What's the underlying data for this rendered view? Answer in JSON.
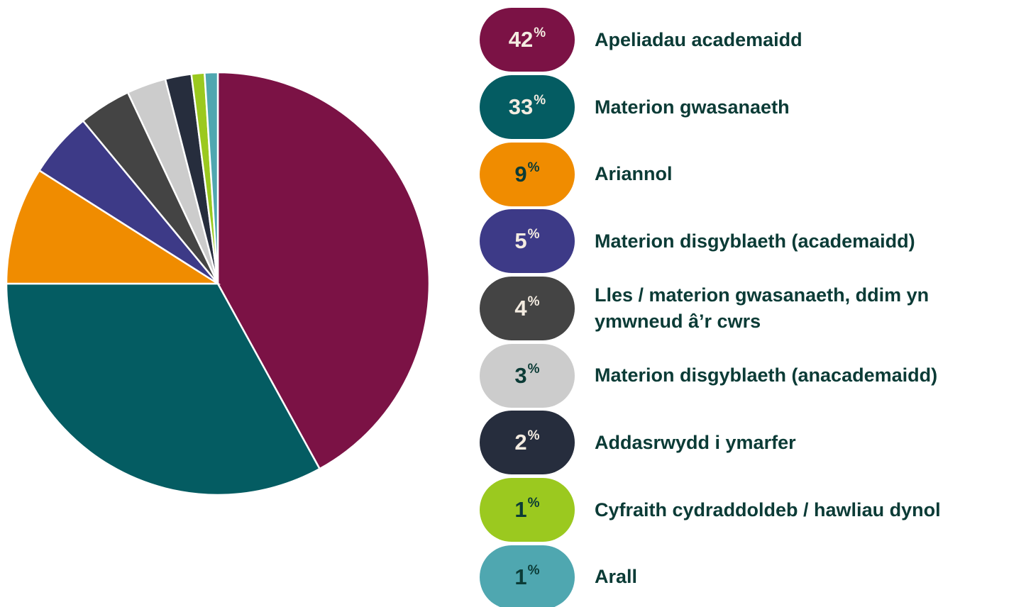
{
  "chart_data": {
    "type": "pie",
    "categories": [
      "Apeliadau academaidd",
      "Materion gwasanaeth",
      "Ariannol",
      "Materion disgyblaeth (academaidd)",
      "Lles / materion gwasanaeth, ddim yn ymwneud â’r cwrs",
      "Materion disgyblaeth (anacademaidd)",
      "Addasrwydd i ymarfer",
      "Cyfraith cydraddoldeb / hawliau dynol",
      "Arall"
    ],
    "values": [
      42,
      33,
      9,
      5,
      4,
      3,
      2,
      1,
      1
    ],
    "value_labels": [
      "42%",
      "33%",
      "9%",
      "5%",
      "4%",
      "3%",
      "2%",
      "1%",
      "1%"
    ],
    "colors": [
      "#7b1245",
      "#045c62",
      "#f08c00",
      "#3d3a87",
      "#444444",
      "#cccccc",
      "#262d3d",
      "#9bc91f",
      "#4fa7b0"
    ]
  }
}
